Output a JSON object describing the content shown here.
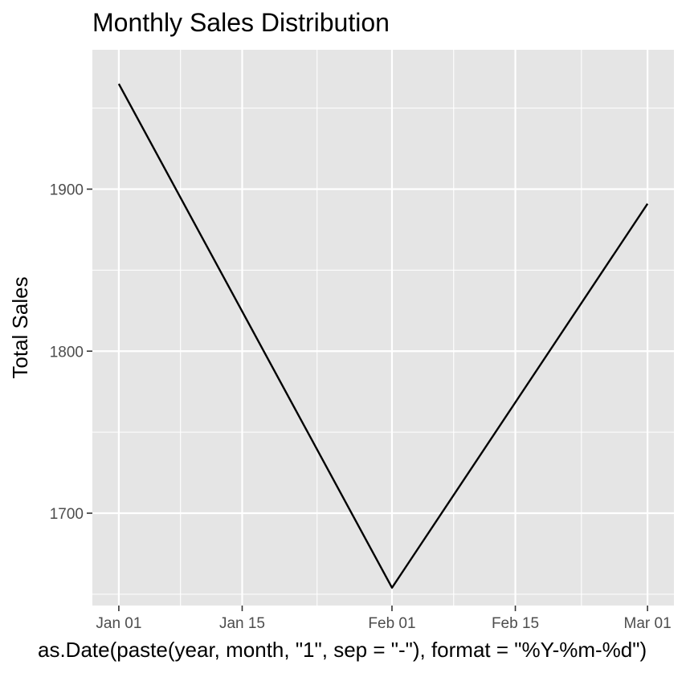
{
  "chart_data": {
    "type": "line",
    "title": "Monthly Sales Distribution",
    "xlabel": "as.Date(paste(year, month, \"1\", sep = \"-\"), format = \"%Y-%m-%d\")",
    "ylabel": "Total Sales",
    "x_type": "date",
    "x_ticks": [
      {
        "label": "Jan 01",
        "date": "2000-01-01"
      },
      {
        "label": "Jan 15",
        "date": "2000-01-15"
      },
      {
        "label": "Feb 01",
        "date": "2000-02-01"
      },
      {
        "label": "Feb 15",
        "date": "2000-02-15"
      },
      {
        "label": "Mar 01",
        "date": "2000-03-01"
      }
    ],
    "y_ticks": [
      1700,
      1800,
      1900
    ],
    "ylim": [
      1643,
      1986
    ],
    "grid": true,
    "legend": "none",
    "series": [
      {
        "color": "#000000",
        "points": [
          {
            "x": "2000-01-01",
            "y": 1965
          },
          {
            "x": "2000-02-01",
            "y": 1654
          },
          {
            "x": "2000-03-01",
            "y": 1891
          }
        ]
      }
    ],
    "panel_background": "#e5e5e5",
    "grid_color": "#ffffff",
    "line_color": "#000000"
  }
}
